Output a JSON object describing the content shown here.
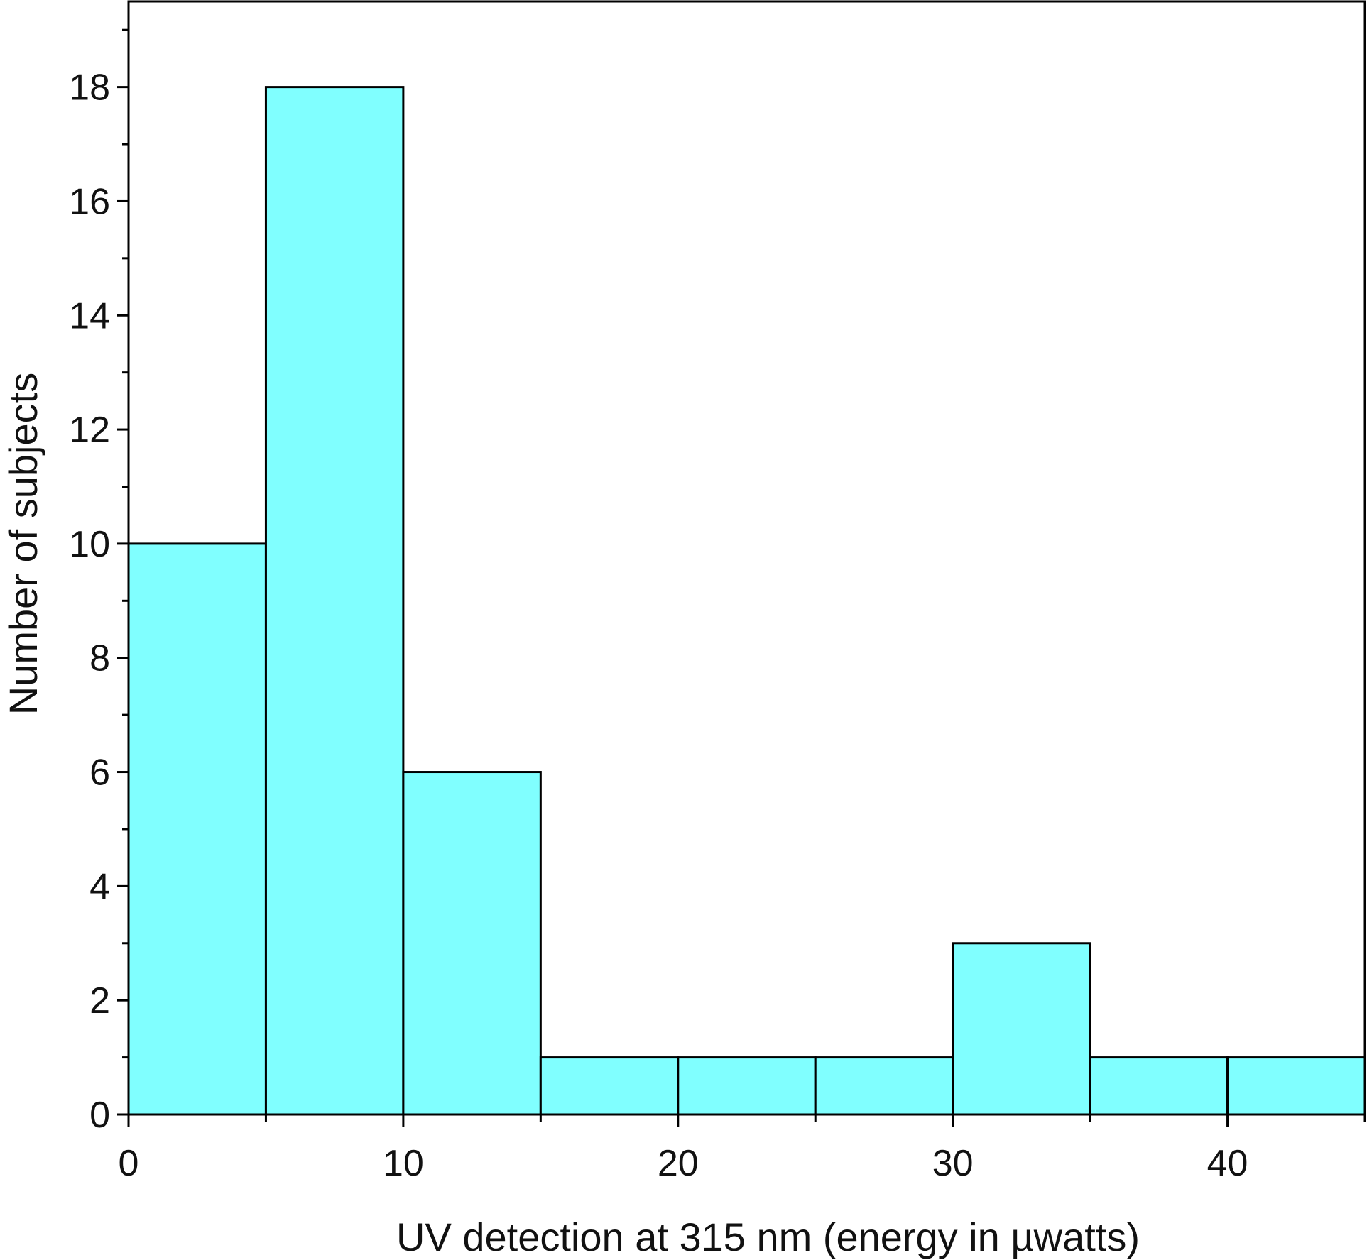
{
  "chart_data": {
    "type": "bar",
    "subtype": "histogram",
    "title": "",
    "xlabel": "UV detection at 315 nm (energy in µwatts)",
    "ylabel": "Number of subjects",
    "bin_width": 5,
    "bins": [
      {
        "start": 0,
        "end": 5,
        "count": 10
      },
      {
        "start": 5,
        "end": 10,
        "count": 18
      },
      {
        "start": 10,
        "end": 15,
        "count": 6
      },
      {
        "start": 15,
        "end": 20,
        "count": 1
      },
      {
        "start": 20,
        "end": 25,
        "count": 1
      },
      {
        "start": 25,
        "end": 30,
        "count": 1
      },
      {
        "start": 30,
        "end": 35,
        "count": 3
      },
      {
        "start": 35,
        "end": 40,
        "count": 1
      },
      {
        "start": 40,
        "end": 45,
        "count": 1
      }
    ],
    "xlim": [
      0,
      45
    ],
    "ylim": [
      0,
      19.5
    ],
    "x_ticks": [
      0,
      10,
      20,
      30,
      40
    ],
    "x_minor_step": 5,
    "y_ticks": [
      0,
      2,
      4,
      6,
      8,
      10,
      12,
      14,
      16,
      18
    ],
    "y_minor_step": 1,
    "grid": false,
    "legend": "none",
    "colors": {
      "bar_fill": "#80ffff",
      "bar_stroke": "#000000",
      "axis": "#000000"
    }
  }
}
